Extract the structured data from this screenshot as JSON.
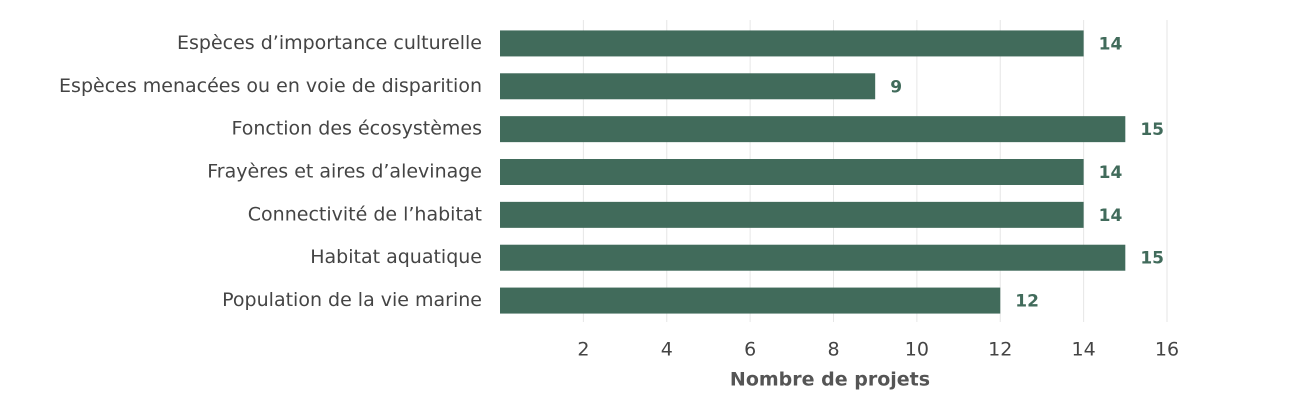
{
  "chart_data": {
    "type": "bar",
    "orientation": "horizontal",
    "x_label": "Nombre de projets",
    "categories": [
      "Espèces d’importance culturelle",
      "Espèces menacées ou en voie de disparition",
      "Fonction des écosystèmes",
      "Frayères et aires d’alevinage",
      "Connectivité de l’habitat",
      "Habitat aquatique",
      "Population de la vie marine"
    ],
    "values": [
      14,
      9,
      15,
      14,
      14,
      15,
      12
    ],
    "color": "#416b5b",
    "xlim": [
      0,
      16
    ],
    "xticks": [
      2,
      4,
      6,
      8,
      10,
      12,
      14,
      16
    ],
    "grid": true
  }
}
